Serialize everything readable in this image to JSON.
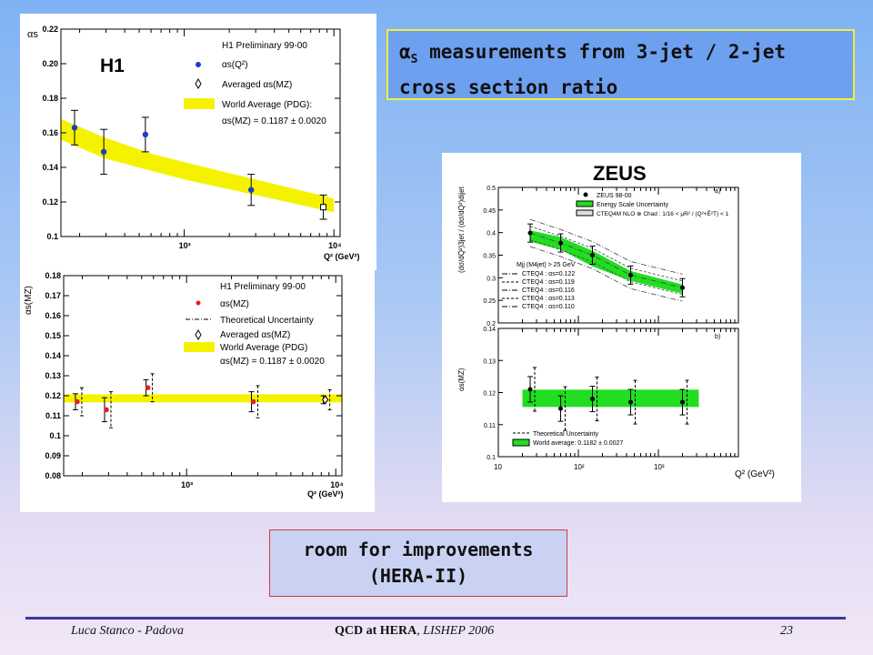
{
  "slide_title": {
    "alpha": "α",
    "sub": "S",
    "text_line1": " measurements from 3-jet / 2-jet",
    "text_line2": "cross section ratio"
  },
  "note": {
    "line1": "room for improvements",
    "line2": "(HERA-II)"
  },
  "footer": {
    "author": "Luca Stanco - Padova",
    "conf_bold": "QCD at HERA",
    "conf_rest": ", LISHEP 2006",
    "page": "23"
  },
  "chart_data": [
    {
      "type": "scatter",
      "title": "H1",
      "xlabel": "Q² (GeV²)",
      "ylabel": "αs",
      "xscale": "log",
      "xlim": [
        150,
        11000
      ],
      "ylim": [
        0.1,
        0.22
      ],
      "yticks": [
        0.1,
        0.12,
        0.14,
        0.16,
        0.18,
        0.2,
        0.22
      ],
      "xtick_labels": [
        "10³",
        "10⁴"
      ],
      "legend": [
        "H1 Preliminary 99-00",
        "αs(Q²)",
        "Averaged αs(MZ)",
        "World Average (PDG):",
        "αs(MZ) = 0.1187 ± 0.0020"
      ],
      "legend_position": "top-right",
      "series": [
        {
          "name": "αs(Q²)",
          "x": [
            185,
            290,
            550,
            2800,
            8500
          ],
          "y": [
            0.163,
            0.149,
            0.159,
            0.127,
            0.117
          ],
          "err": [
            0.007,
            0.01,
            0.007,
            0.006,
            0.004
          ]
        }
      ],
      "band": {
        "x": [
          150,
          300,
          600,
          1000,
          3000,
          10000
        ],
        "lo": [
          0.156,
          0.145,
          0.138,
          0.133,
          0.124,
          0.114
        ],
        "hi": [
          0.168,
          0.157,
          0.148,
          0.143,
          0.133,
          0.122
        ]
      }
    },
    {
      "type": "scatter",
      "xlabel": "Q² (GeV²)",
      "ylabel": "αs(MZ)",
      "xscale": "log",
      "xlim": [
        150,
        11000
      ],
      "ylim": [
        0.08,
        0.18
      ],
      "yticks": [
        0.08,
        0.09,
        0.1,
        0.11,
        0.12,
        0.13,
        0.14,
        0.15,
        0.16,
        0.17,
        0.18
      ],
      "xtick_labels": [
        "10³",
        "10⁴"
      ],
      "legend": [
        "H1 Preliminary 99-00",
        "αs(MZ)",
        "Theoretical Uncertainty",
        "Averaged αs(MZ)",
        "World Average (PDG)",
        "αs(MZ) = 0.1187 ± 0.0020"
      ],
      "legend_position": "top-right",
      "series": [
        {
          "name": "αs(MZ)",
          "x": [
            185,
            290,
            550,
            2800,
            8500
          ],
          "y": [
            0.117,
            0.113,
            0.124,
            0.117,
            0.118
          ],
          "err": [
            0.004,
            0.006,
            0.004,
            0.005,
            0.002
          ]
        }
      ],
      "band": {
        "lo": 0.1167,
        "hi": 0.1207
      }
    },
    {
      "type": "scatter",
      "title": "ZEUS",
      "panel_labels": [
        "a)",
        "b)"
      ],
      "xlabel": "Q² (GeV²)",
      "ylabel_top": "(dσ/dQ²)3jet / (dσ/dQ²)dijet",
      "ylabel_bottom": "αs(MZ)",
      "xscale": "log",
      "xlim": [
        10,
        10000
      ],
      "xtick_labels": [
        "10",
        "10²",
        "10³"
      ],
      "top": {
        "ylim": [
          0.2,
          0.5
        ],
        "yticks": [
          0.2,
          0.25,
          0.3,
          0.35,
          0.4,
          0.45,
          0.5
        ],
        "legend": [
          "ZEUS 98-00",
          "Energy Scale Uncertainty",
          "CTEQ4M NLO ⊗ Chad : 1/16 < μR² / (Q²+Ē²T) < 1"
        ],
        "pdf_legend": [
          "Mjj (M4jet) > 25 GeV",
          "CTEQ4 : αs=0.122",
          "CTEQ4 : αs=0.119",
          "CTEQ4 : αs=0.116",
          "CTEQ4 : αs=0.113",
          "CTEQ4 : αs=0.110"
        ],
        "series": [
          {
            "name": "ZEUS 98-00",
            "x": [
              25,
              60,
              150,
              450,
              2000
            ],
            "y": [
              0.399,
              0.377,
              0.35,
              0.306,
              0.278
            ]
          }
        ],
        "band": {
          "x": [
            25,
            60,
            150,
            450,
            2000
          ],
          "lo": [
            0.38,
            0.362,
            0.325,
            0.293,
            0.265
          ],
          "hi": [
            0.405,
            0.39,
            0.36,
            0.315,
            0.285
          ]
        }
      },
      "bottom": {
        "ylim": [
          0.1,
          0.14
        ],
        "yticks": [
          0.1,
          0.11,
          0.12,
          0.13,
          0.14
        ],
        "legend": [
          "Theoretical Uncertainty",
          "World average: 0.1182 ± 0.0027"
        ],
        "series": [
          {
            "name": "αs(MZ)",
            "x": [
              25,
              60,
              150,
              450,
              2000
            ],
            "y": [
              0.121,
              0.115,
              0.118,
              0.117,
              0.117
            ]
          }
        ],
        "band": {
          "lo": 0.1155,
          "hi": 0.1209
        }
      }
    }
  ]
}
